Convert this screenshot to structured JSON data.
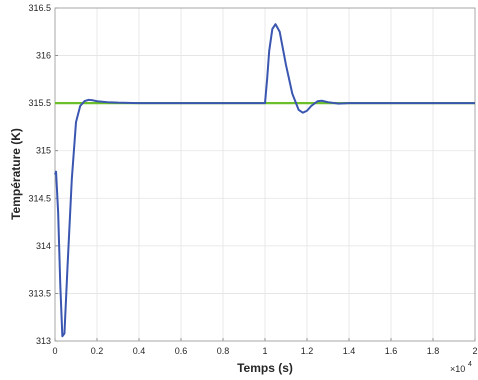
{
  "chart_data": {
    "type": "line",
    "title": "",
    "xlabel": "Temps (s)",
    "ylabel": "Température (K)",
    "x_multiplier_label": "×10",
    "x_multiplier_exponent": "4",
    "xlim": [
      0,
      2
    ],
    "ylim": [
      313,
      316.5
    ],
    "x_ticks": [
      "0",
      "0.2",
      "0.4",
      "0.6",
      "0.8",
      "1",
      "1.2",
      "1.4",
      "1.6",
      "1.8",
      "2"
    ],
    "y_ticks": [
      "313",
      "313.5",
      "314",
      "314.5",
      "315",
      "315.5",
      "316",
      "316.5"
    ],
    "x_tick_values": [
      0,
      0.2,
      0.4,
      0.6,
      0.8,
      1.0,
      1.2,
      1.4,
      1.6,
      1.8,
      2.0
    ],
    "y_tick_values": [
      313,
      313.5,
      314,
      314.5,
      315,
      315.5,
      316,
      316.5
    ],
    "grid": true,
    "series": [
      {
        "color": "#3a56b0",
        "x": [
          0,
          0.005,
          0.015,
          0.025,
          0.035,
          0.045,
          0.06,
          0.08,
          0.1,
          0.12,
          0.14,
          0.16,
          0.18,
          0.2,
          0.25,
          0.3,
          0.4,
          0.5,
          0.6,
          0.8,
          0.99,
          1.0,
          1.01,
          1.02,
          1.035,
          1.05,
          1.07,
          1.1,
          1.13,
          1.16,
          1.18,
          1.2,
          1.22,
          1.25,
          1.27,
          1.3,
          1.35,
          1.4,
          1.5,
          1.7,
          2.0
        ],
        "y": [
          314.75,
          314.78,
          314.35,
          313.6,
          313.05,
          313.08,
          313.8,
          314.7,
          315.3,
          315.47,
          315.52,
          315.535,
          315.53,
          315.52,
          315.51,
          315.505,
          315.5,
          315.5,
          315.5,
          315.5,
          315.5,
          315.5,
          315.75,
          316.05,
          316.28,
          316.33,
          316.25,
          315.9,
          315.6,
          315.43,
          315.4,
          315.42,
          315.47,
          315.52,
          315.525,
          315.51,
          315.495,
          315.5,
          315.5,
          315.5,
          315.5
        ]
      },
      {
        "color": "#6cbf2a",
        "x": [
          0,
          2
        ],
        "y": [
          315.5,
          315.5
        ]
      }
    ]
  }
}
